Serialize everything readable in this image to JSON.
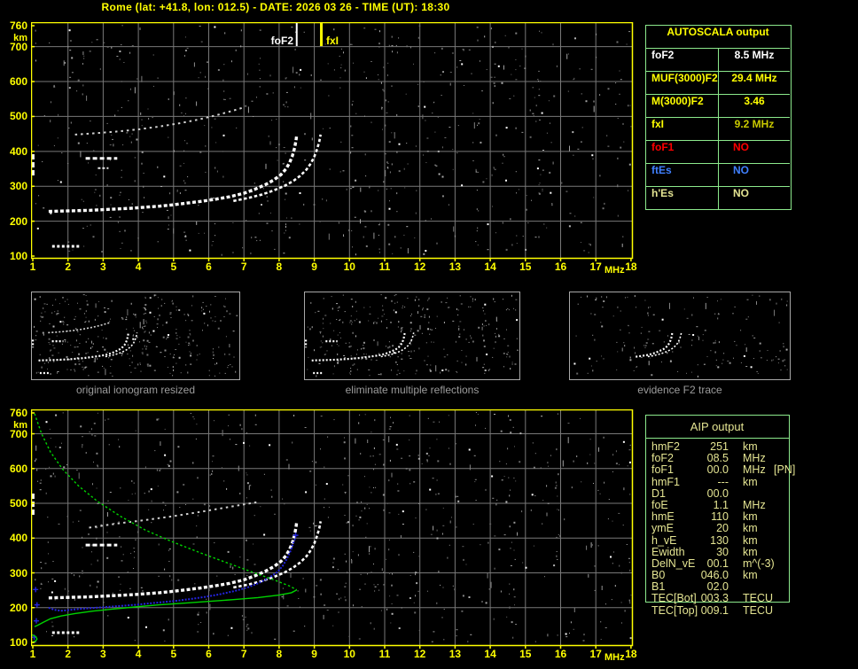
{
  "title": "Rome (lat: +41.8, lon: 012.5) - DATE: 2026 03 26 - TIME (UT): 18:30",
  "colors": {
    "accent_yellow": "#ffff00",
    "white": "#ffffff",
    "dim_yellow": "#c9c900",
    "red": "#ff0000",
    "blue": "#4080ff",
    "pale_yellow": "#e4e492",
    "table_border_green": "#8ce98c",
    "grid_gray": "#787878",
    "profile_green": "#00d400",
    "restored_blue": "#2424dd",
    "caption_gray": "#9c9c9c"
  },
  "ionogram": {
    "x_unit": "MHz",
    "y_unit": "km",
    "x_ticks": [
      "1",
      "2",
      "3",
      "4",
      "5",
      "6",
      "7",
      "8",
      "9",
      "10",
      "11",
      "12",
      "13",
      "14",
      "15",
      "16",
      "17",
      "18"
    ],
    "y_ticks": [
      "760",
      "700",
      "600",
      "500",
      "400",
      "300",
      "200",
      "100"
    ],
    "y_tick_values": [
      760,
      700,
      600,
      500,
      400,
      300,
      200,
      100
    ],
    "markers": {
      "foF2": {
        "label": "foF2",
        "freq": 8.5
      },
      "fxI": {
        "label": "fxI",
        "freq": 9.2
      }
    }
  },
  "autoscala_table": {
    "header": "AUTOSCALA output",
    "rows": [
      {
        "param": "foF2",
        "value": "8.5 MHz",
        "color": "white"
      },
      {
        "param": "MUF(3000)F2",
        "value": "29.4 MHz",
        "color": "accent_yellow"
      },
      {
        "param": "M(3000)F2",
        "value": "3.46",
        "color": "accent_yellow"
      },
      {
        "param": "fxI",
        "value": "9.2 MHz",
        "color": "accent_yellow",
        "value_color": "dim_yellow"
      },
      {
        "param": "foF1",
        "value": "NO",
        "color": "red"
      },
      {
        "param": "ftEs",
        "value": "NO",
        "color": "blue"
      },
      {
        "param": "h'Es",
        "value": "NO",
        "color": "pale_yellow"
      }
    ]
  },
  "thumbnails": [
    {
      "caption": "original ionogram resized"
    },
    {
      "caption": "eliminate multiple reflections"
    },
    {
      "caption": "evidence F2 trace"
    }
  ],
  "aip_table": {
    "header": "AIP output",
    "rows": [
      {
        "param": "hmF2",
        "value": "251",
        "unit": "km",
        "note": ""
      },
      {
        "param": "foF2",
        "value": "08.5",
        "unit": "MHz",
        "note": ""
      },
      {
        "param": "foF1",
        "value": "00.0",
        "unit": "MHz",
        "note": "[PN]"
      },
      {
        "param": "hmF1",
        "value": "---",
        "unit": "km",
        "note": ""
      },
      {
        "param": "D1",
        "value": "00.0",
        "unit": "",
        "note": ""
      },
      {
        "param": "foE",
        "value": "1.1",
        "unit": "MHz",
        "note": ""
      },
      {
        "param": "hmE",
        "value": "110",
        "unit": "km",
        "note": ""
      },
      {
        "param": "ymE",
        "value": "20",
        "unit": "km",
        "note": ""
      },
      {
        "param": "h_vE",
        "value": "130",
        "unit": "km",
        "note": ""
      },
      {
        "param": "Ewidth",
        "value": "30",
        "unit": "km",
        "note": ""
      },
      {
        "param": "DelN_vE",
        "value": "00.1",
        "unit": "m^(-3)",
        "note": ""
      },
      {
        "param": "B0",
        "value": "046.0",
        "unit": "km",
        "note": ""
      },
      {
        "param": "B1",
        "value": "02.0",
        "unit": "",
        "note": ""
      },
      {
        "param": "TEC[Bot]",
        "value": "003.3",
        "unit": "TECU",
        "note": ""
      },
      {
        "param": "TEC[Top]",
        "value": "009.1",
        "unit": "TECU",
        "note": ""
      }
    ]
  },
  "chart_data": [
    {
      "type": "scatter",
      "title": "scaled ionogram (top panel)",
      "xlabel": "MHz",
      "ylabel": "km",
      "xlim": [
        1,
        18
      ],
      "ylim": [
        100,
        760
      ],
      "grid": true,
      "markers": [
        {
          "label": "foF2",
          "x": 8.5
        },
        {
          "label": "fxI",
          "x": 9.2
        }
      ],
      "series": [
        {
          "name": "f2-o-trace",
          "color": "#ffffff",
          "w": 3.4,
          "dash": "4 2.5",
          "points": [
            [
              1.45,
              228
            ],
            [
              1.8,
              229
            ],
            [
              2.2,
              230
            ],
            [
              2.6,
              231
            ],
            [
              3.0,
              233
            ],
            [
              3.4,
              235
            ],
            [
              3.8,
              237
            ],
            [
              4.2,
              240
            ],
            [
              4.6,
              243
            ],
            [
              5.0,
              247
            ],
            [
              5.4,
              252
            ],
            [
              5.8,
              257
            ],
            [
              6.2,
              263
            ],
            [
              6.6,
              270
            ],
            [
              7.0,
              280
            ],
            [
              7.3,
              291
            ],
            [
              7.6,
              304
            ],
            [
              7.85,
              318
            ],
            [
              8.05,
              333
            ],
            [
              8.2,
              350
            ],
            [
              8.3,
              368
            ],
            [
              8.38,
              388
            ],
            [
              8.44,
              410
            ],
            [
              8.48,
              432
            ],
            [
              8.5,
              448
            ]
          ]
        },
        {
          "name": "f2-x-trace",
          "color": "#ffffff",
          "w": 2.6,
          "dash": "3.5 2.5",
          "points": [
            [
              6.7,
              258
            ],
            [
              7.1,
              266
            ],
            [
              7.5,
              276
            ],
            [
              7.85,
              288
            ],
            [
              8.15,
              301
            ],
            [
              8.4,
              315
            ],
            [
              8.6,
              330
            ],
            [
              8.77,
              347
            ],
            [
              8.9,
              365
            ],
            [
              9.0,
              385
            ],
            [
              9.08,
              407
            ],
            [
              9.14,
              428
            ],
            [
              9.18,
              448
            ]
          ]
        },
        {
          "name": "second-hop-echo",
          "color": "#d2d2d2",
          "w": 2,
          "dash": "2.5 4",
          "points": [
            [
              2.2,
              448
            ],
            [
              2.8,
              452
            ],
            [
              3.4,
              457
            ],
            [
              4.0,
              463
            ],
            [
              4.6,
              471
            ],
            [
              5.2,
              481
            ],
            [
              5.7,
              491
            ],
            [
              6.2,
              503
            ],
            [
              6.6,
              514
            ],
            [
              7.0,
              526
            ]
          ]
        },
        {
          "name": "echo-seg-a",
          "color": "#ffffff",
          "w": 3,
          "dash": "5 3",
          "points": [
            [
              2.5,
              380
            ],
            [
              3.4,
              380
            ]
          ]
        },
        {
          "name": "echo-seg-b",
          "color": "#e8e8e8",
          "w": 2,
          "dash": "3 2",
          "points": [
            [
              2.85,
              352
            ],
            [
              3.15,
              352
            ]
          ]
        },
        {
          "name": "echo-seg-c",
          "color": "#ffffff",
          "w": 3,
          "dash": "3 2.5",
          "points": [
            [
              1.55,
              128
            ],
            [
              2.35,
              128
            ]
          ]
        },
        {
          "name": "edge-streak",
          "color": "#ffffff",
          "w": 3,
          "dash": "6 3",
          "points": [
            [
              1.01,
              392
            ],
            [
              1.01,
              330
            ]
          ]
        }
      ]
    },
    {
      "type": "scatter",
      "title": "ionogram with AIP electron density profile (bottom panel)",
      "xlabel": "MHz",
      "ylabel": "km",
      "xlim": [
        1,
        18
      ],
      "ylim": [
        100,
        760
      ],
      "grid": true,
      "series": [
        {
          "name": "f2-o-trace",
          "color": "#ffffff",
          "w": 3.4,
          "dash": "4 2.5",
          "points": [
            [
              1.45,
              228
            ],
            [
              1.8,
              229
            ],
            [
              2.2,
              230
            ],
            [
              2.6,
              231
            ],
            [
              3.0,
              233
            ],
            [
              3.4,
              235
            ],
            [
              3.8,
              237
            ],
            [
              4.2,
              240
            ],
            [
              4.6,
              243
            ],
            [
              5.0,
              247
            ],
            [
              5.4,
              252
            ],
            [
              5.8,
              257
            ],
            [
              6.2,
              263
            ],
            [
              6.6,
              270
            ],
            [
              7.0,
              280
            ],
            [
              7.3,
              291
            ],
            [
              7.6,
              304
            ],
            [
              7.85,
              318
            ],
            [
              8.05,
              333
            ],
            [
              8.2,
              350
            ],
            [
              8.3,
              368
            ],
            [
              8.38,
              388
            ],
            [
              8.44,
              410
            ],
            [
              8.48,
              432
            ],
            [
              8.5,
              448
            ]
          ]
        },
        {
          "name": "f2-x-trace",
          "color": "#ffffff",
          "w": 2.6,
          "dash": "3.5 2.5",
          "points": [
            [
              6.7,
              258
            ],
            [
              7.1,
              266
            ],
            [
              7.5,
              276
            ],
            [
              7.85,
              288
            ],
            [
              8.15,
              301
            ],
            [
              8.4,
              315
            ],
            [
              8.6,
              330
            ],
            [
              8.77,
              347
            ],
            [
              8.9,
              365
            ],
            [
              9.0,
              385
            ],
            [
              9.08,
              407
            ],
            [
              9.14,
              428
            ],
            [
              9.18,
              448
            ]
          ]
        },
        {
          "name": "second-hop-echo",
          "color": "#cfcfcf",
          "w": 2,
          "dash": "2.5 4",
          "points": [
            [
              2.6,
              430
            ],
            [
              3.4,
              442
            ],
            [
              4.2,
              452
            ],
            [
              5.0,
              463
            ],
            [
              5.8,
              476
            ],
            [
              6.6,
              490
            ],
            [
              7.4,
              504
            ]
          ]
        },
        {
          "name": "echo-seg-a",
          "color": "#ffffff",
          "w": 3,
          "dash": "5 3",
          "points": [
            [
              2.5,
              380
            ],
            [
              3.4,
              380
            ]
          ]
        },
        {
          "name": "echo-seg-c",
          "color": "#ffffff",
          "w": 3,
          "dash": "3 2.5",
          "points": [
            [
              1.55,
              128
            ],
            [
              2.35,
              128
            ]
          ]
        },
        {
          "name": "edge-streak",
          "color": "#ffffff",
          "w": 3,
          "dash": "6 3",
          "points": [
            [
              1.01,
              528
            ],
            [
              1.01,
              462
            ]
          ]
        },
        {
          "name": "restored-trace-blue",
          "color": "#2424dd",
          "w": 2,
          "dash": "2 1.6",
          "points": [
            [
              1.45,
              200
            ],
            [
              1.6,
              194
            ],
            [
              1.8,
              191
            ],
            [
              2.0,
              193
            ],
            [
              2.3,
              196
            ],
            [
              2.7,
              199
            ],
            [
              3.1,
              202
            ],
            [
              3.5,
              205
            ],
            [
              3.9,
              208
            ],
            [
              4.3,
              212
            ],
            [
              4.7,
              216
            ],
            [
              5.1,
              220
            ],
            [
              5.5,
              225
            ],
            [
              5.9,
              231
            ],
            [
              6.3,
              238
            ],
            [
              6.7,
              247
            ],
            [
              7.1,
              258
            ],
            [
              7.4,
              270
            ],
            [
              7.7,
              285
            ],
            [
              7.95,
              302
            ],
            [
              8.1,
              320
            ],
            [
              8.22,
              340
            ],
            [
              8.32,
              362
            ],
            [
              8.4,
              385
            ],
            [
              8.45,
              398
            ]
          ]
        },
        {
          "name": "restored-points-blue",
          "color": "#2424dd",
          "marker": "plus",
          "points": [
            [
              1.08,
              252
            ],
            [
              1.12,
              208
            ],
            [
              1.1,
              162
            ],
            [
              1.04,
              115
            ],
            [
              8.47,
              408
            ]
          ]
        },
        {
          "name": "ne-profile-topside",
          "color": "#00d400",
          "w": 1.4,
          "dash": "2.5 2.5",
          "points": [
            [
              1.05,
              758
            ],
            [
              1.25,
              700
            ],
            [
              1.5,
              648
            ],
            [
              1.85,
              598
            ],
            [
              2.3,
              550
            ],
            [
              2.85,
              505
            ],
            [
              3.5,
              462
            ],
            [
              4.2,
              423
            ],
            [
              5.0,
              388
            ],
            [
              5.8,
              356
            ],
            [
              6.6,
              326
            ],
            [
              7.3,
              300
            ],
            [
              7.9,
              278
            ],
            [
              8.3,
              262
            ],
            [
              8.5,
              251
            ]
          ]
        },
        {
          "name": "ne-profile-bottomside",
          "color": "#00d400",
          "w": 1.4,
          "dash": "",
          "points": [
            [
              8.5,
              251
            ],
            [
              8.35,
              243
            ],
            [
              8.0,
              236
            ],
            [
              7.4,
              229
            ],
            [
              6.7,
              223
            ],
            [
              6.0,
              218
            ],
            [
              5.3,
              213
            ],
            [
              4.6,
              208
            ],
            [
              3.9,
              202
            ],
            [
              3.3,
              196
            ],
            [
              2.7,
              190
            ],
            [
              2.2,
              183
            ],
            [
              1.8,
              176
            ],
            [
              1.5,
              168
            ],
            [
              1.3,
              158
            ],
            [
              1.15,
              150
            ],
            [
              1.05,
              145
            ]
          ]
        },
        {
          "name": "ne-profile-e-layer",
          "color": "#00d400",
          "w": 1.4,
          "dash": "",
          "points": [
            [
              0.98,
              100
            ],
            [
              1.08,
              104
            ],
            [
              1.12,
              110
            ],
            [
              1.08,
              117
            ],
            [
              0.98,
              122
            ]
          ]
        }
      ]
    }
  ]
}
